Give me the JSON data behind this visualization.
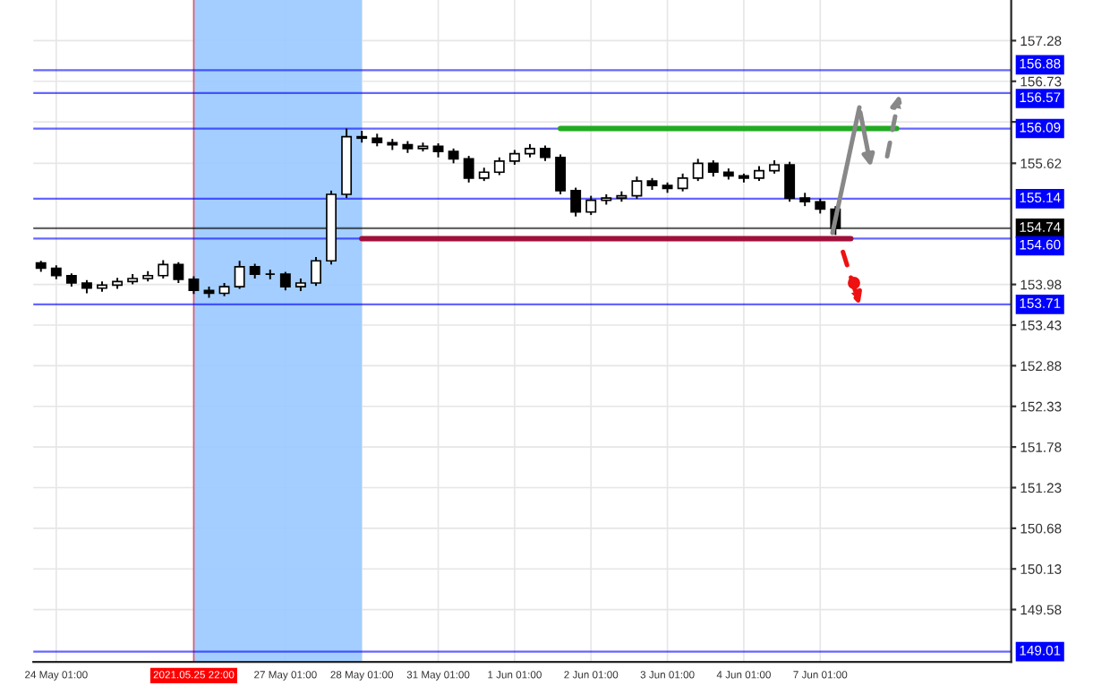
{
  "chart_data": {
    "type": "candlestick",
    "color": "#000000",
    "categories": [
      null,
      "24 May 01:00",
      null,
      null,
      null,
      null,
      null,
      null,
      null,
      null,
      "2021.05.25 22:00",
      null,
      null,
      null,
      null,
      null,
      "27 May 01:00",
      null,
      null,
      null,
      null,
      "28 May 01:00",
      null,
      null,
      null,
      null,
      "31 May 01:00",
      null,
      null,
      null,
      null,
      "1 Jun 01:00",
      null,
      null,
      null,
      null,
      "2 Jun 01:00",
      null,
      null,
      null,
      null,
      "3 Jun 01:00",
      null,
      null,
      null,
      null,
      "4 Jun 01:00",
      null,
      null,
      null,
      null,
      "7 Jun 01:00",
      null,
      null,
      null,
      null,
      null,
      null,
      null,
      null,
      null,
      null,
      null,
      null
    ],
    "ohlc": [
      [
        154.27,
        154.3,
        154.15,
        154.2
      ],
      [
        154.2,
        154.24,
        154.05,
        154.1
      ],
      [
        154.1,
        154.13,
        153.95,
        154.0
      ],
      [
        154.0,
        154.04,
        153.86,
        153.93
      ],
      [
        153.93,
        154.02,
        153.88,
        153.97
      ],
      [
        153.97,
        154.07,
        153.92,
        154.02
      ],
      [
        154.02,
        154.12,
        153.98,
        154.06
      ],
      [
        154.06,
        154.16,
        154.02,
        154.1
      ],
      [
        154.1,
        154.31,
        154.06,
        154.25
      ],
      [
        154.25,
        154.28,
        154.0,
        154.05
      ],
      [
        154.05,
        154.09,
        153.85,
        153.9
      ],
      [
        153.9,
        153.95,
        153.8,
        153.86
      ],
      [
        153.86,
        154.0,
        153.82,
        153.95
      ],
      [
        153.95,
        154.3,
        153.92,
        154.22
      ],
      [
        154.22,
        154.26,
        154.06,
        154.12
      ],
      [
        154.12,
        154.18,
        154.05,
        154.12
      ],
      [
        154.12,
        154.15,
        153.9,
        153.95
      ],
      [
        153.95,
        154.06,
        153.89,
        154.0
      ],
      [
        154.0,
        154.35,
        153.96,
        154.3
      ],
      [
        154.3,
        155.25,
        154.25,
        155.2
      ],
      [
        155.2,
        156.09,
        155.15,
        155.98
      ],
      [
        155.98,
        156.06,
        155.9,
        155.96
      ],
      [
        155.96,
        156.02,
        155.85,
        155.9
      ],
      [
        155.9,
        155.95,
        155.8,
        155.87
      ],
      [
        155.87,
        155.92,
        155.76,
        155.82
      ],
      [
        155.82,
        155.9,
        155.78,
        155.85
      ],
      [
        155.85,
        155.89,
        155.7,
        155.78
      ],
      [
        155.78,
        155.82,
        155.62,
        155.68
      ],
      [
        155.68,
        155.72,
        155.36,
        155.42
      ],
      [
        155.42,
        155.56,
        155.38,
        155.5
      ],
      [
        155.5,
        155.7,
        155.46,
        155.65
      ],
      [
        155.65,
        155.8,
        155.6,
        155.75
      ],
      [
        155.75,
        155.88,
        155.7,
        155.82
      ],
      [
        155.82,
        155.86,
        155.65,
        155.7
      ],
      [
        155.7,
        155.74,
        155.2,
        155.25
      ],
      [
        155.25,
        155.29,
        154.9,
        154.96
      ],
      [
        154.96,
        155.18,
        154.92,
        155.12
      ],
      [
        155.12,
        155.2,
        155.06,
        155.15
      ],
      [
        155.15,
        155.24,
        155.1,
        155.18
      ],
      [
        155.18,
        155.44,
        155.14,
        155.38
      ],
      [
        155.38,
        155.42,
        155.26,
        155.32
      ],
      [
        155.32,
        155.36,
        155.22,
        155.28
      ],
      [
        155.28,
        155.48,
        155.24,
        155.42
      ],
      [
        155.42,
        155.68,
        155.38,
        155.62
      ],
      [
        155.62,
        155.66,
        155.44,
        155.5
      ],
      [
        155.5,
        155.55,
        155.4,
        155.45
      ],
      [
        155.45,
        155.48,
        155.36,
        155.42
      ],
      [
        155.42,
        155.58,
        155.38,
        155.52
      ],
      [
        155.52,
        155.66,
        155.48,
        155.6
      ],
      [
        155.6,
        155.64,
        155.1,
        155.15
      ],
      [
        155.15,
        155.22,
        155.04,
        155.1
      ],
      [
        155.1,
        155.14,
        154.94,
        155.0
      ],
      [
        155.0,
        155.04,
        154.65,
        154.74
      ],
      null,
      null,
      null,
      null,
      null,
      null,
      null,
      null,
      null,
      null,
      null
    ],
    "series": [
      {
        "type": "line",
        "color": "#22aa22",
        "values": [
          null,
          null,
          null,
          null,
          null,
          null,
          null,
          null,
          null,
          null,
          null,
          null,
          null,
          null,
          null,
          null,
          null,
          null,
          null,
          null,
          null,
          null,
          null,
          null,
          null,
          null,
          null,
          null,
          null,
          null,
          null,
          null,
          null,
          null,
          156.09,
          156.09,
          156.09,
          156.09,
          156.09,
          156.09,
          156.09,
          156.09,
          156.09,
          156.09,
          156.09,
          156.09,
          156.09,
          156.09,
          156.09,
          156.09,
          156.09,
          156.09,
          156.09,
          156.09,
          156.09,
          156.09,
          156.09,
          null,
          null,
          null,
          null,
          null,
          null,
          null
        ]
      },
      {
        "type": "line",
        "color": "#a0103a",
        "values": [
          null,
          null,
          null,
          null,
          null,
          null,
          null,
          null,
          null,
          null,
          null,
          null,
          null,
          null,
          null,
          null,
          null,
          null,
          null,
          null,
          null,
          154.6,
          154.6,
          154.6,
          154.6,
          154.6,
          154.6,
          154.6,
          154.6,
          154.6,
          154.6,
          154.6,
          154.6,
          154.6,
          154.6,
          154.6,
          154.6,
          154.6,
          154.6,
          154.6,
          154.6,
          154.6,
          154.6,
          154.6,
          154.6,
          154.6,
          154.6,
          154.6,
          154.6,
          154.6,
          154.6,
          154.6,
          154.6,
          154.6,
          null,
          null,
          null,
          null,
          null,
          null,
          null,
          null,
          null,
          null
        ]
      }
    ],
    "ylim": [
      148.87,
      157.83
    ],
    "yticks": [
      157.28,
      156.73,
      {
        "value": 156.18,
        "label": null
      },
      155.62,
      153.98,
      153.43,
      152.88,
      152.33,
      151.78,
      151.23,
      150.68,
      150.13,
      149.58
    ],
    "grid": true,
    "bands": [
      {
        "axis": "x",
        "from": "2021.05.25 22:00",
        "to": "28 May 01:00",
        "color": "#99c9ff"
      }
    ],
    "ref_lines": [
      {
        "axis": "y",
        "value": 156.88,
        "label": "156.88",
        "color": "#0000ff"
      },
      {
        "axis": "y",
        "value": 156.57,
        "label": "156.57",
        "color": "#0000ff"
      },
      {
        "axis": "y",
        "value": 156.09,
        "label": "156.09",
        "color": "#0000ff"
      },
      {
        "axis": "y",
        "value": 155.14,
        "label": "155.14",
        "color": "#0000ff"
      },
      {
        "axis": "y",
        "value": 154.74,
        "label": "154.74",
        "color": "#000000"
      },
      {
        "axis": "y",
        "value": 154.6,
        "label": "154.60",
        "color": "#0000ff"
      },
      {
        "axis": "y",
        "value": 153.71,
        "label": "153.71",
        "color": "#0000ff"
      },
      {
        "axis": "y",
        "value": 149.01,
        "label": "149.01",
        "color": "#0000ff"
      },
      {
        "axis": "x",
        "value": "2021.05.25 22:00",
        "color": "#ff0000"
      }
    ]
  }
}
